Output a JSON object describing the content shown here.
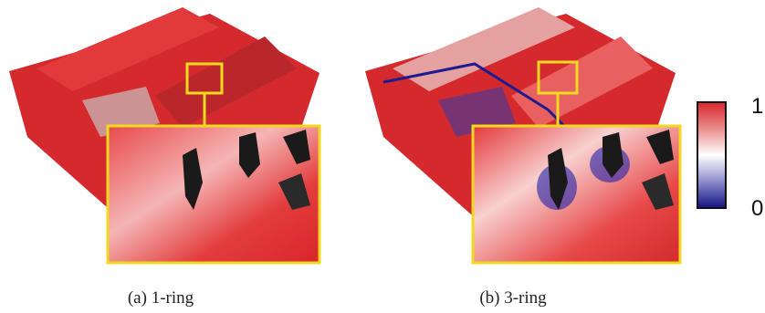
{
  "figure": {
    "panels": [
      {
        "caption": "(a) 1-ring"
      },
      {
        "caption": "(b) 3-ring"
      }
    ],
    "colorbar": {
      "top_label": "1",
      "bottom_label": "0"
    }
  }
}
